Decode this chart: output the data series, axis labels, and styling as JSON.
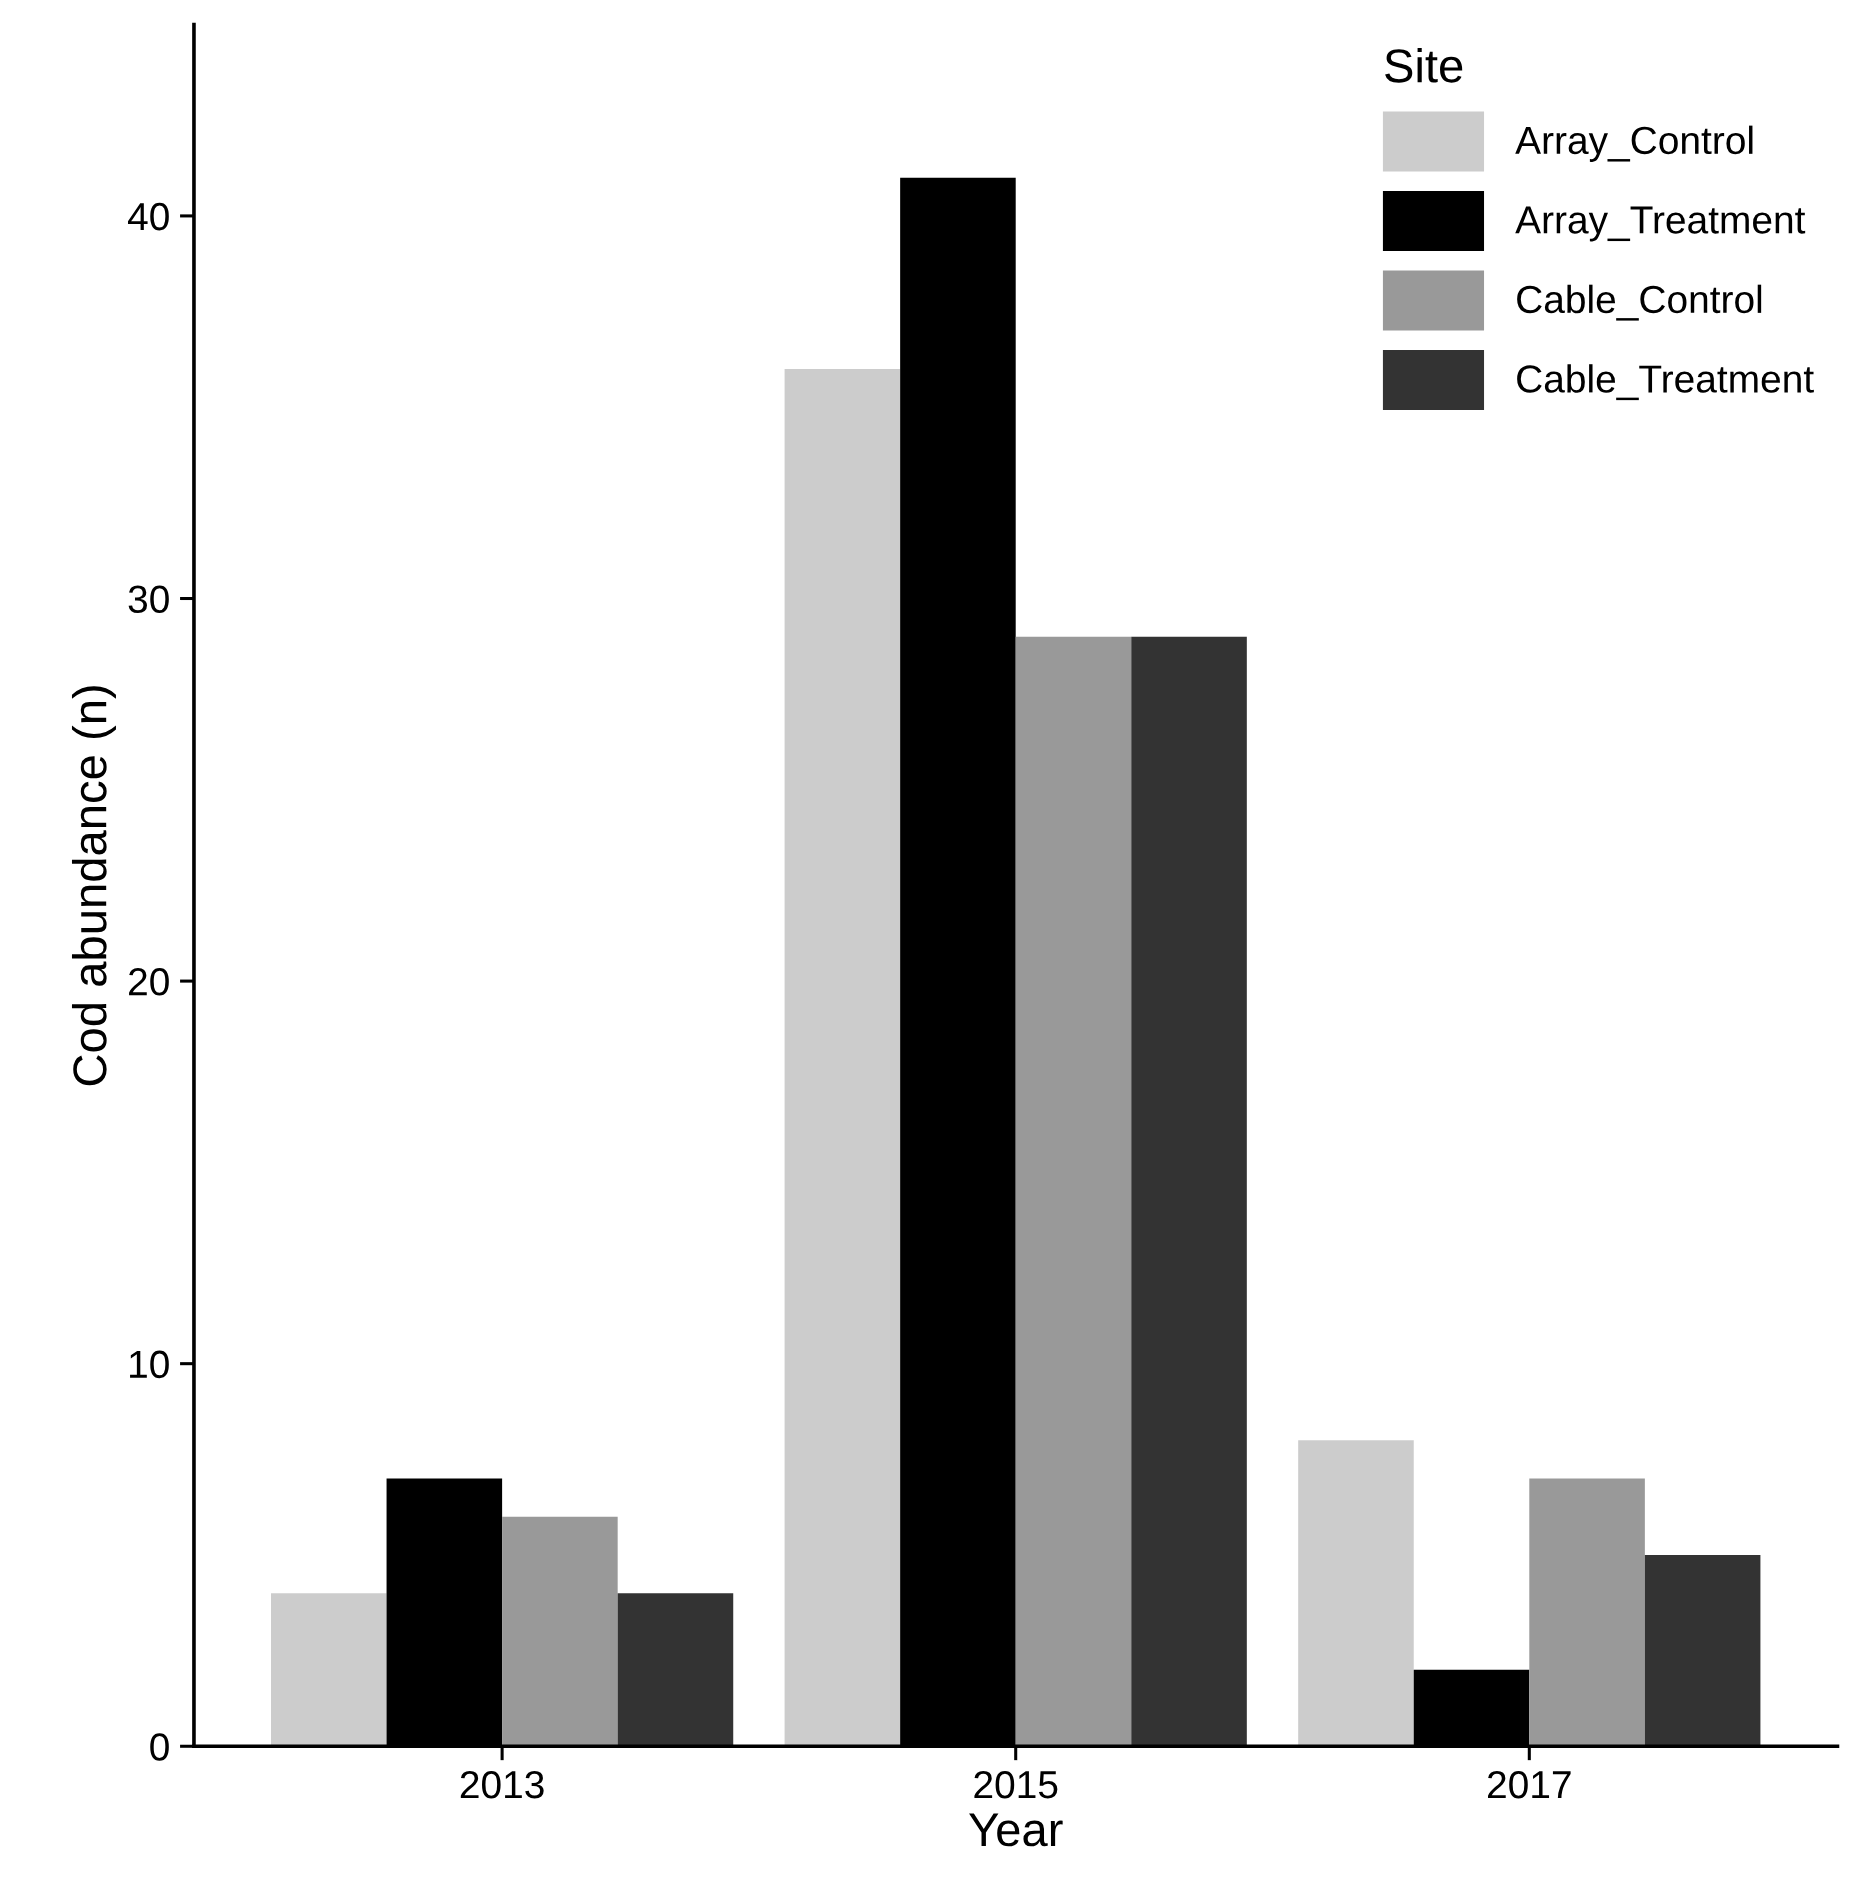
{
  "chart_data": {
    "type": "bar",
    "xlabel": "Year",
    "ylabel": "Cod abundance (n)",
    "legend_title": "Site",
    "categories": [
      "2013",
      "2015",
      "2017"
    ],
    "series": [
      {
        "name": "Array_Control",
        "color": "#cccccc",
        "values": [
          4,
          36,
          8
        ]
      },
      {
        "name": "Array_Treatment",
        "color": "#000000",
        "values": [
          7,
          41,
          2
        ]
      },
      {
        "name": "Cable_Control",
        "color": "#999999",
        "values": [
          6,
          29,
          7
        ]
      },
      {
        "name": "Cable_Treatment",
        "color": "#333333",
        "values": [
          4,
          29,
          5
        ]
      }
    ],
    "ylim": [
      0,
      45
    ],
    "yticks": [
      0,
      10,
      20,
      30,
      40
    ],
    "grid": false,
    "legend": "top right"
  }
}
